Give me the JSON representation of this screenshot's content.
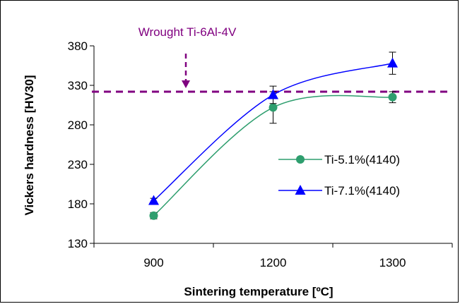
{
  "chart_data": {
    "type": "line",
    "xlabel": "Sintering temperature [ºC]",
    "ylabel": "Vickers hardness [HV30]",
    "categories": [
      "900",
      "1200",
      "1300"
    ],
    "ylim": [
      130,
      380
    ],
    "yticks": [
      130,
      180,
      230,
      280,
      330,
      380
    ],
    "grid": false,
    "legend_position": "right-middle",
    "series": [
      {
        "name": "Ti-5.1%(4140)",
        "values": [
          165,
          302,
          315
        ],
        "error": [
          4,
          20,
          7
        ],
        "color": "#2e9e6e",
        "marker": "circle"
      },
      {
        "name": "Ti-7.1%(4140)",
        "values": [
          184,
          318,
          358
        ],
        "error": [
          3,
          11,
          14
        ],
        "color": "#0000ff",
        "marker": "triangle"
      }
    ],
    "reference_line": {
      "label": "Wrought Ti-6Al-4V",
      "value": 322,
      "color": "#800080"
    }
  }
}
